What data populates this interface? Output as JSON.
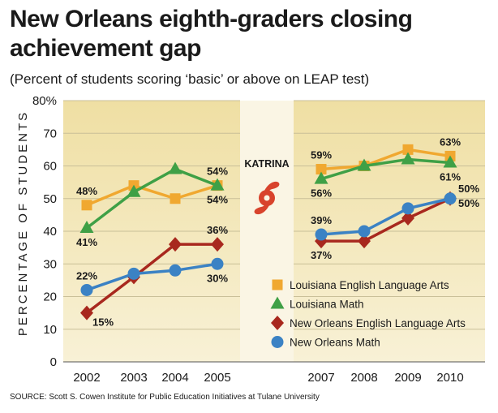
{
  "chart_data": {
    "type": "line",
    "title": "New Orleans eighth-graders closing achievement gap",
    "subtitle": "(Percent of students scoring ‘basic’ or above on LEAP test)",
    "ylabel": "PERCENTAGE OF STUDENTS",
    "xlabel": "",
    "ylim": [
      0,
      80
    ],
    "yticks": [
      "0",
      "10",
      "20",
      "30",
      "40",
      "50",
      "60",
      "70",
      "80%"
    ],
    "annotation": "KATRINA",
    "segments": [
      {
        "x": [
          "2002",
          "2003",
          "2004",
          "2005"
        ]
      },
      {
        "x": [
          "2007",
          "2008",
          "2009",
          "2010"
        ]
      }
    ],
    "series": [
      {
        "name": "Louisiana English Language Arts",
        "color": "#f0a830",
        "marker": "square",
        "segments": [
          [
            48,
            54,
            50,
            54
          ],
          [
            59,
            60,
            65,
            63
          ]
        ]
      },
      {
        "name": "Louisiana Math",
        "color": "#3fa046",
        "marker": "triangle",
        "segments": [
          [
            41,
            52,
            59,
            54
          ],
          [
            56,
            60,
            62,
            61
          ]
        ]
      },
      {
        "name": "New Orleans English Language Arts",
        "color": "#a8281e",
        "marker": "diamond",
        "segments": [
          [
            15,
            26,
            36,
            36
          ],
          [
            37,
            37,
            44,
            50
          ]
        ]
      },
      {
        "name": "New Orleans Math",
        "color": "#3b82c4",
        "marker": "circle",
        "segments": [
          [
            22,
            27,
            28,
            30
          ],
          [
            39,
            40,
            47,
            50
          ]
        ]
      }
    ],
    "data_labels": [
      {
        "text": "48%",
        "series": 0,
        "seg": 0,
        "i": 0,
        "pos": "above"
      },
      {
        "text": "54%",
        "series": 0,
        "seg": 0,
        "i": 3,
        "pos": "above"
      },
      {
        "text": "41%",
        "series": 1,
        "seg": 0,
        "i": 0,
        "pos": "below"
      },
      {
        "text": "54%",
        "series": 1,
        "seg": 0,
        "i": 3,
        "pos": "below"
      },
      {
        "text": "36%",
        "series": 2,
        "seg": 0,
        "i": 3,
        "pos": "above"
      },
      {
        "text": "15%",
        "series": 2,
        "seg": 0,
        "i": 0,
        "pos": "below-right"
      },
      {
        "text": "22%",
        "series": 3,
        "seg": 0,
        "i": 0,
        "pos": "above"
      },
      {
        "text": "30%",
        "series": 3,
        "seg": 0,
        "i": 3,
        "pos": "below"
      },
      {
        "text": "59%",
        "series": 0,
        "seg": 1,
        "i": 0,
        "pos": "above"
      },
      {
        "text": "63%",
        "series": 0,
        "seg": 1,
        "i": 3,
        "pos": "above"
      },
      {
        "text": "56%",
        "series": 1,
        "seg": 1,
        "i": 0,
        "pos": "below"
      },
      {
        "text": "61%",
        "series": 1,
        "seg": 1,
        "i": 3,
        "pos": "below"
      },
      {
        "text": "39%",
        "series": 3,
        "seg": 1,
        "i": 0,
        "pos": "above"
      },
      {
        "text": "37%",
        "series": 2,
        "seg": 1,
        "i": 0,
        "pos": "below"
      },
      {
        "text": "50%",
        "series": 3,
        "seg": 1,
        "i": 3,
        "pos": "right-above"
      },
      {
        "text": "50%",
        "series": 2,
        "seg": 1,
        "i": 3,
        "pos": "right-below"
      }
    ]
  },
  "source": "SOURCE: Scott S. Cowen Institute for Public Education Initiatives at Tulane University",
  "colors": {
    "panel": "#f3e9bf",
    "gap": "#faf5e4",
    "grid": "#c9bf98"
  }
}
